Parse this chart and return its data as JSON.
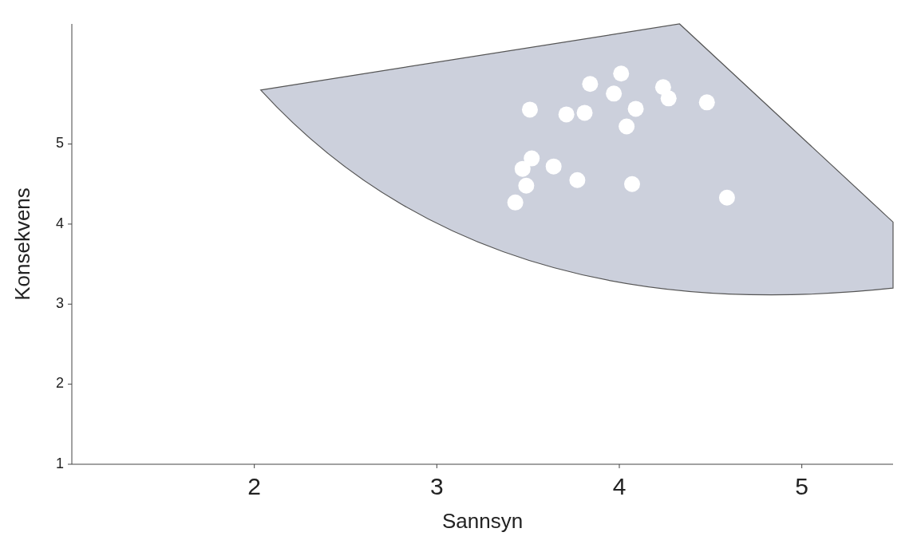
{
  "chart_data": {
    "type": "scatter",
    "xlabel": "Sannsyn",
    "ylabel": "Konsekvens",
    "xlim": [
      1,
      5.5
    ],
    "ylim": [
      1,
      6.5
    ],
    "xticks": [
      2,
      3,
      4,
      5
    ],
    "yticks": [
      1,
      2,
      3,
      4,
      5
    ],
    "grid": false,
    "marker": "circle",
    "series": [
      {
        "color": "#ffffff",
        "x": [
          3.43,
          3.49,
          3.47,
          3.52,
          3.64,
          3.77,
          4.07,
          4.59,
          3.51,
          3.71,
          3.81,
          4.04,
          3.84,
          3.97,
          4.09,
          4.01,
          4.24,
          4.27,
          4.48
        ],
        "values": [
          4.27,
          4.48,
          4.69,
          4.82,
          4.72,
          4.55,
          4.5,
          4.33,
          5.43,
          5.37,
          5.39,
          5.22,
          5.75,
          5.63,
          5.44,
          5.88,
          5.71,
          5.57,
          5.52
        ]
      }
    ]
  }
}
